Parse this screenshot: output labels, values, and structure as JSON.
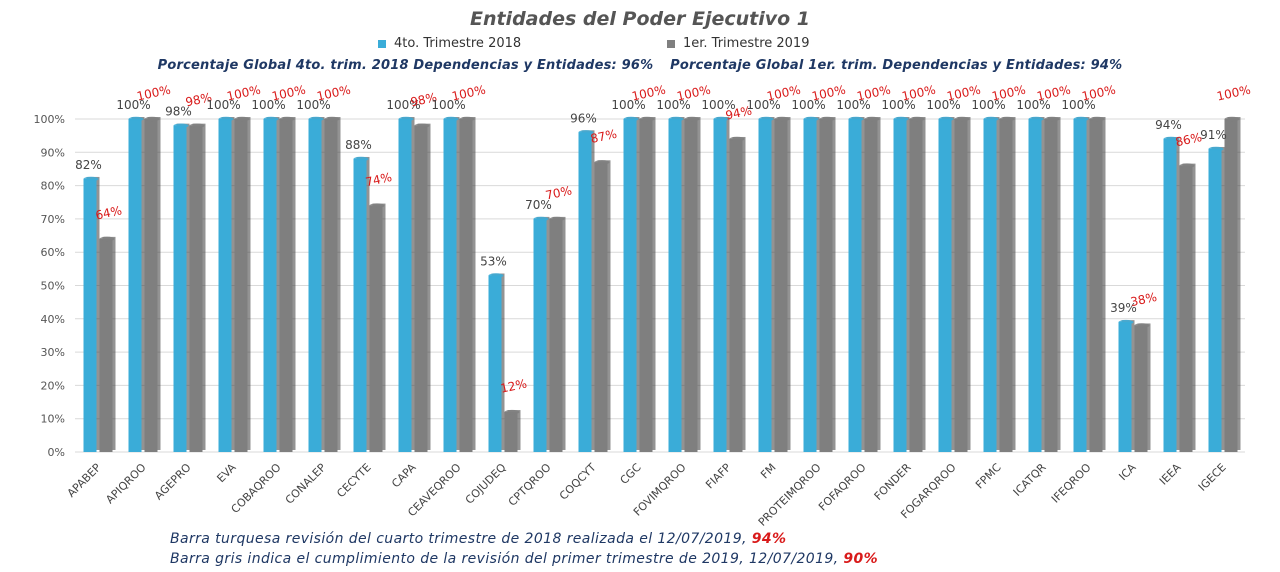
{
  "colors": {
    "series1": "#3aacd8",
    "series2": "#7f7f7f",
    "label1": "#444444",
    "label2": "#d91a1a",
    "title": "#555555",
    "subtitle": "#1f3864",
    "grid": "#d9d9d9"
  },
  "footer": {
    "line1_text": "Barra turquesa revisión del cuarto trimestre de 2018 realizada el 12/07/2019, ",
    "line1_value": "94%",
    "line2_text": "Barra gris indica el cumplimiento de la revisión del primer trimestre de 2019, 12/07/2019, ",
    "line2_value": "90%"
  },
  "chart_data": {
    "type": "bar",
    "title": "Entidades del Poder Ejecutivo 1",
    "subtitle_left": "Porcentaje Global 4to. trim. 2018 Dependencias y Entidades: 96%",
    "subtitle_right": "Porcentaje Global 1er. trim. Dependencias y Entidades: 94%",
    "legend_position": "top",
    "grid": true,
    "ylim": [
      0,
      100
    ],
    "yticks": [
      "0%",
      "10%",
      "20%",
      "30%",
      "40%",
      "50%",
      "60%",
      "70%",
      "80%",
      "90%",
      "100%"
    ],
    "categories": [
      "APABEP",
      "APIQROO",
      "AGEPRO",
      "EVA",
      "COBAQROO",
      "CONALEP",
      "CECYTE",
      "CAPA",
      "CEAVEQROO",
      "COJUDEQ",
      "CPTQROO",
      "COQCYT",
      "CGC",
      "FOVIMQROO",
      "FIAFP",
      "FM",
      "PROTEIMQROO",
      "FOFAQROO",
      "FONDER",
      "FOGARQROO",
      "FPMC",
      "ICATQR",
      "IFEQROO",
      "ICA",
      "IEEA",
      "IGECE"
    ],
    "series": [
      {
        "name": "4to. Trimestre 2018",
        "values": [
          82,
          100,
          98,
          100,
          100,
          100,
          88,
          100,
          100,
          53,
          70,
          96,
          100,
          100,
          100,
          100,
          100,
          100,
          100,
          100,
          100,
          100,
          100,
          39,
          94,
          91
        ],
        "labels": [
          "82%",
          "100%",
          "98%",
          "100%",
          "100%",
          "100%",
          "88%",
          "100%",
          "100%",
          "53%",
          "70%",
          "96%",
          "100%",
          "100%",
          "100%",
          "100%",
          "100%",
          "100%",
          "100%",
          "100%",
          "100%",
          "100%",
          "100%",
          "39%",
          "94%",
          "91%"
        ]
      },
      {
        "name": "1er. Trimestre 2019",
        "values": [
          64,
          100,
          98,
          100,
          100,
          100,
          74,
          98,
          100,
          12,
          70,
          87,
          100,
          100,
          94,
          100,
          100,
          100,
          100,
          100,
          100,
          100,
          100,
          38,
          86,
          100
        ],
        "labels": [
          "64%",
          "100%",
          "98%",
          "100%",
          "100%",
          "100%",
          "74%",
          "98%",
          "100%",
          "12%",
          "70%",
          "87%",
          "100%",
          "100%",
          "94%",
          "100%",
          "100%",
          "100%",
          "100%",
          "100%",
          "100%",
          "100%",
          "100%",
          "38%",
          "86%",
          "100%"
        ]
      }
    ]
  }
}
